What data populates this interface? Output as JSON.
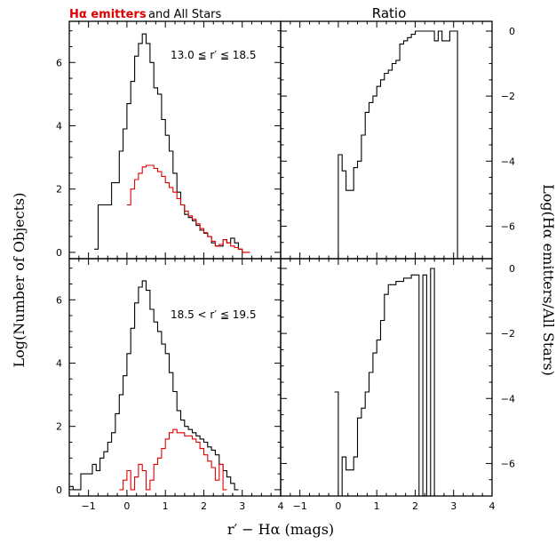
{
  "figure": {
    "title_red": "Hα emitters",
    "title_black": "and All Stars",
    "ratio_title": "Ratio",
    "ylabel_left": "Log(Number of Objects)",
    "ylabel_right": "Log(Hα emitters/All Stars)",
    "xlabel": "r′ − Hα (mags)",
    "colors": {
      "all_stars": "#000000",
      "ha_emitters": "#e00000"
    }
  },
  "chart_data": [
    {
      "type": "line",
      "panel": "top-left",
      "annotation": "13.0 ≦ r′ ≦ 18.5",
      "xlim": [
        -1.5,
        4
      ],
      "ylim": [
        -0.2,
        7.3
      ],
      "xticks": [
        -1,
        0,
        1,
        2,
        3,
        4
      ],
      "yticks": [
        0,
        2,
        4,
        6
      ],
      "series": [
        {
          "name": "All Stars",
          "color": "#000000",
          "x": [
            -0.85,
            -0.5,
            -0.3,
            -0.2,
            -0.1,
            0.0,
            0.1,
            0.2,
            0.3,
            0.4,
            0.5,
            0.6,
            0.7,
            0.8,
            0.9,
            1.0,
            1.1,
            1.2,
            1.3,
            1.4,
            1.5,
            1.6,
            1.7,
            1.8,
            1.9,
            2.0,
            2.1,
            2.2,
            2.3,
            2.4,
            2.5,
            2.6,
            2.7,
            2.8,
            2.9,
            3.0,
            3.1
          ],
          "y": [
            0.1,
            1.5,
            2.2,
            3.2,
            3.9,
            4.7,
            5.4,
            6.2,
            6.6,
            6.9,
            6.6,
            6.0,
            5.2,
            5.0,
            4.2,
            3.7,
            3.2,
            2.5,
            1.9,
            1.5,
            1.2,
            1.1,
            1.0,
            0.85,
            0.7,
            0.6,
            0.5,
            0.3,
            0.2,
            0.2,
            0.4,
            0.3,
            0.45,
            0.3,
            0.1,
            0.0,
            0.0
          ]
        },
        {
          "name": "Hα emitters",
          "color": "#e00000",
          "x": [
            0.0,
            0.1,
            0.2,
            0.3,
            0.4,
            0.5,
            0.6,
            0.7,
            0.8,
            0.9,
            1.0,
            1.1,
            1.2,
            1.3,
            1.4,
            1.5,
            1.6,
            1.7,
            1.8,
            1.9,
            2.0,
            2.1,
            2.2,
            2.3,
            2.4,
            2.5,
            2.6,
            2.7,
            2.8,
            2.9,
            3.0,
            3.1
          ],
          "y": [
            1.5,
            2.0,
            2.3,
            2.5,
            2.7,
            2.75,
            2.75,
            2.65,
            2.55,
            2.4,
            2.2,
            2.05,
            1.9,
            1.7,
            1.5,
            1.3,
            1.15,
            1.05,
            0.9,
            0.75,
            0.62,
            0.5,
            0.35,
            0.2,
            0.25,
            0.4,
            0.3,
            0.2,
            0.15,
            0.1,
            0.0,
            0.0
          ]
        }
      ]
    },
    {
      "type": "line",
      "panel": "top-right",
      "title": "Ratio",
      "xlim": [
        -1.5,
        4
      ],
      "ylim": [
        -7.0,
        0.3
      ],
      "xticks": [
        -1,
        0,
        1,
        2,
        3,
        4
      ],
      "yticks": [
        0,
        -2,
        -4,
        -6
      ],
      "series": [
        {
          "color": "#000000",
          "x": [
            -0.1,
            0.0,
            0.1,
            0.2,
            0.3,
            0.4,
            0.5,
            0.6,
            0.7,
            0.8,
            0.9,
            1.0,
            1.1,
            1.2,
            1.3,
            1.4,
            1.5,
            1.6,
            1.7,
            1.8,
            1.9,
            2.0,
            2.1,
            2.2,
            2.3,
            2.4,
            2.5,
            2.6,
            2.7,
            2.8,
            2.9,
            3.0,
            3.1
          ],
          "y": [
            -7.0,
            -3.8,
            -4.3,
            -4.9,
            -4.9,
            -4.2,
            -4.0,
            -3.2,
            -2.5,
            -2.2,
            -2.0,
            -1.7,
            -1.5,
            -1.3,
            -1.2,
            -1.0,
            -0.9,
            -0.4,
            -0.3,
            -0.2,
            -0.1,
            0.0,
            0.0,
            0.0,
            0.0,
            0.0,
            -0.3,
            0.0,
            -0.3,
            -0.3,
            0.0,
            0.0,
            -7.0
          ]
        }
      ]
    },
    {
      "type": "line",
      "panel": "bottom-left",
      "annotation": "18.5 < r′ ≦ 19.5",
      "xlim": [
        -1.5,
        4
      ],
      "ylim": [
        -0.2,
        7.3
      ],
      "xticks": [
        -1,
        0,
        1,
        2,
        3,
        4
      ],
      "yticks": [
        0,
        2,
        4,
        6
      ],
      "series": [
        {
          "name": "All Stars",
          "color": "#000000",
          "x": [
            -1.5,
            -1.3,
            -1.0,
            -0.9,
            -0.8,
            -0.7,
            -0.6,
            -0.5,
            -0.4,
            -0.3,
            -0.2,
            -0.1,
            0.0,
            0.1,
            0.2,
            0.3,
            0.4,
            0.5,
            0.6,
            0.7,
            0.8,
            0.9,
            1.0,
            1.1,
            1.2,
            1.3,
            1.4,
            1.5,
            1.6,
            1.7,
            1.8,
            1.9,
            2.0,
            2.1,
            2.2,
            2.3,
            2.4,
            2.5,
            2.6,
            2.7,
            2.8
          ],
          "y": [
            0.1,
            0.0,
            0.5,
            0.8,
            0.6,
            1.0,
            1.2,
            1.5,
            1.8,
            2.4,
            3.0,
            3.6,
            4.3,
            5.1,
            5.9,
            6.4,
            6.6,
            6.3,
            5.7,
            5.3,
            5.0,
            4.6,
            4.3,
            3.7,
            3.1,
            2.5,
            2.2,
            2.0,
            1.9,
            1.8,
            1.7,
            1.6,
            1.5,
            1.35,
            1.25,
            1.1,
            0.8,
            0.6,
            0.4,
            0.2,
            0.0
          ]
        },
        {
          "name": "Hα emitters",
          "color": "#e00000",
          "x": [
            -0.2,
            -0.1,
            0.0,
            0.1,
            0.2,
            0.3,
            0.4,
            0.5,
            0.6,
            0.7,
            0.8,
            0.9,
            1.0,
            1.1,
            1.2,
            1.3,
            1.4,
            1.5,
            1.6,
            1.7,
            1.8,
            1.9,
            2.0,
            2.1,
            2.2,
            2.3,
            2.4,
            2.5
          ],
          "y": [
            0.0,
            0.3,
            0.6,
            0.0,
            0.4,
            0.8,
            0.6,
            0.0,
            0.3,
            0.8,
            1.0,
            1.3,
            1.6,
            1.8,
            1.9,
            1.8,
            1.8,
            1.7,
            1.7,
            1.6,
            1.5,
            1.3,
            1.1,
            0.9,
            0.7,
            0.3,
            0.8,
            0.0
          ]
        }
      ]
    },
    {
      "type": "line",
      "panel": "bottom-right",
      "xlim": [
        -1.5,
        4
      ],
      "ylim": [
        -7.0,
        0.3
      ],
      "xticks": [
        -1,
        0,
        1,
        2,
        3,
        4
      ],
      "yticks": [
        0,
        -2,
        -4,
        -6
      ],
      "series": [
        {
          "color": "#000000",
          "x": [
            -0.1,
            0.0,
            0.1,
            0.2,
            0.3,
            0.4,
            0.5,
            0.6,
            0.7,
            0.8,
            0.9,
            1.0,
            1.1,
            1.2,
            1.3,
            1.4,
            1.5,
            1.6,
            1.7,
            1.8,
            1.9,
            2.0,
            2.1,
            2.2,
            2.3,
            2.4,
            2.5
          ],
          "y": [
            -3.8,
            -7.0,
            -5.8,
            -6.2,
            -6.2,
            -5.8,
            -4.6,
            -4.3,
            -3.8,
            -3.2,
            -2.6,
            -2.2,
            -1.6,
            -0.8,
            -0.5,
            -0.5,
            -0.4,
            -0.4,
            -0.3,
            -0.3,
            -0.2,
            -0.2,
            -7.0,
            -0.2,
            -7.0,
            0.0,
            -7.0
          ]
        }
      ]
    }
  ]
}
